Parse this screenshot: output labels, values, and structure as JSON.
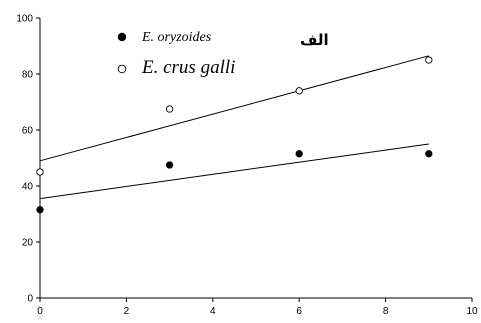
{
  "chart_data": {
    "type": "scatter",
    "panel_label": "الف",
    "xlim": [
      0,
      10
    ],
    "ylim": [
      0,
      100
    ],
    "x_ticks": [
      "0",
      "2",
      "4",
      "6",
      "8",
      "10"
    ],
    "y_ticks": [
      "0",
      "20",
      "40",
      "60",
      "80",
      "100"
    ],
    "grid": false,
    "legend_position": "top-left",
    "series": [
      {
        "name": "E. oryzoides",
        "marker": "filled-circle",
        "color": "#000000",
        "points": [
          {
            "x": 0,
            "y": 31.5
          },
          {
            "x": 3,
            "y": 47.5
          },
          {
            "x": 6,
            "y": 51.5
          },
          {
            "x": 9,
            "y": 51.5
          }
        ],
        "trendline": {
          "x": [
            0,
            9
          ],
          "y": [
            35.5,
            55
          ]
        }
      },
      {
        "name": "E. crus galli",
        "marker": "open-circle",
        "color": "#000000",
        "points": [
          {
            "x": 0,
            "y": 45
          },
          {
            "x": 3,
            "y": 67.5
          },
          {
            "x": 6,
            "y": 74
          },
          {
            "x": 9,
            "y": 85
          }
        ],
        "trendline": {
          "x": [
            0,
            9
          ],
          "y": [
            49,
            86.5
          ]
        }
      }
    ]
  }
}
